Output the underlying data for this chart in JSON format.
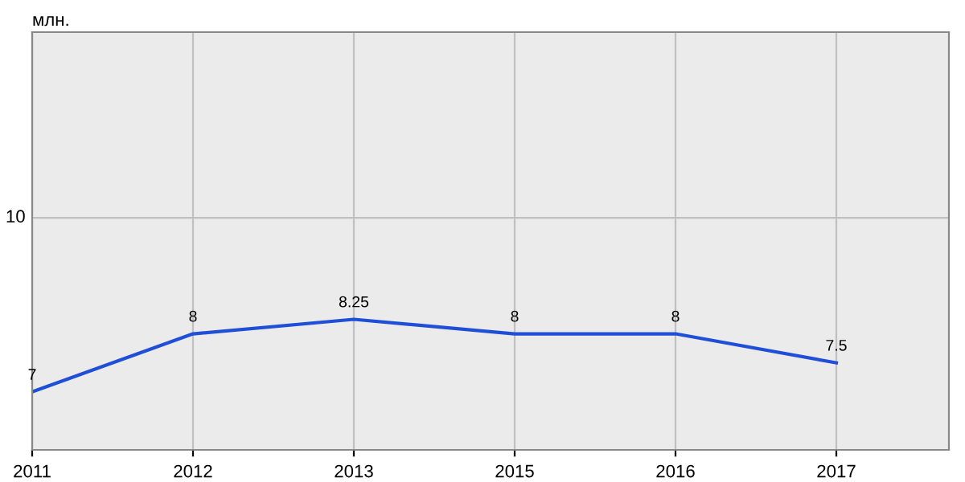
{
  "chart_data": {
    "type": "line",
    "ylabel": "млн.",
    "categories": [
      "2011",
      "2012",
      "2013",
      "2015",
      "2016",
      "2017"
    ],
    "series": [
      {
        "color": "#1f4fd6",
        "values": [
          7,
          8,
          8.25,
          8,
          8,
          7.5
        ]
      }
    ],
    "ylim": [
      6,
      13.2
    ],
    "ref_lines": [
      {
        "axis": "y",
        "value": 10,
        "label": "10",
        "color": "#c0c0c0"
      }
    ],
    "grid": "x",
    "data_labels": true,
    "marker": "none",
    "line_style": "solid"
  }
}
